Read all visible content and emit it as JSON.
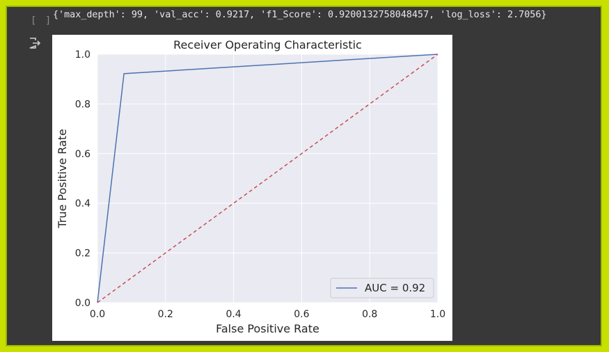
{
  "cell": {
    "prompt": "[ ]",
    "output_icon": "output-redirect-icon",
    "stdout": "{'max_depth': 99, 'val_acc': 0.9217, 'f1_Score': 0.9200132758048457, 'log_loss': 2.7056}"
  },
  "chart_data": {
    "type": "line",
    "title": "Receiver Operating Characteristic",
    "xlabel": "False Positive Rate",
    "ylabel": "True Positive Rate",
    "xlim": [
      0.0,
      1.0
    ],
    "ylim": [
      0.0,
      1.0
    ],
    "xticks": [
      0.0,
      0.2,
      0.4,
      0.6,
      0.8,
      1.0
    ],
    "yticks": [
      0.0,
      0.2,
      0.4,
      0.6,
      0.8,
      1.0
    ],
    "xtick_labels": [
      "0.0",
      "0.2",
      "0.4",
      "0.6",
      "0.8",
      "1.0"
    ],
    "ytick_labels": [
      "0.0",
      "0.2",
      "0.4",
      "0.6",
      "0.8",
      "1.0"
    ],
    "grid": true,
    "legend": "bottom-right",
    "series": [
      {
        "name": "AUC = 0.92",
        "style": "solid",
        "color": "#4c72b0",
        "x": [
          0.0,
          0.078,
          1.0
        ],
        "y": [
          0.0,
          0.922,
          1.0
        ]
      },
      {
        "style": "dashed",
        "color": "#c44e52",
        "x": [
          0.0,
          1.0
        ],
        "y": [
          0.0,
          1.0
        ]
      }
    ],
    "colors": {
      "plot_background": "#eaeaf2",
      "grid": "#ffffff"
    }
  }
}
